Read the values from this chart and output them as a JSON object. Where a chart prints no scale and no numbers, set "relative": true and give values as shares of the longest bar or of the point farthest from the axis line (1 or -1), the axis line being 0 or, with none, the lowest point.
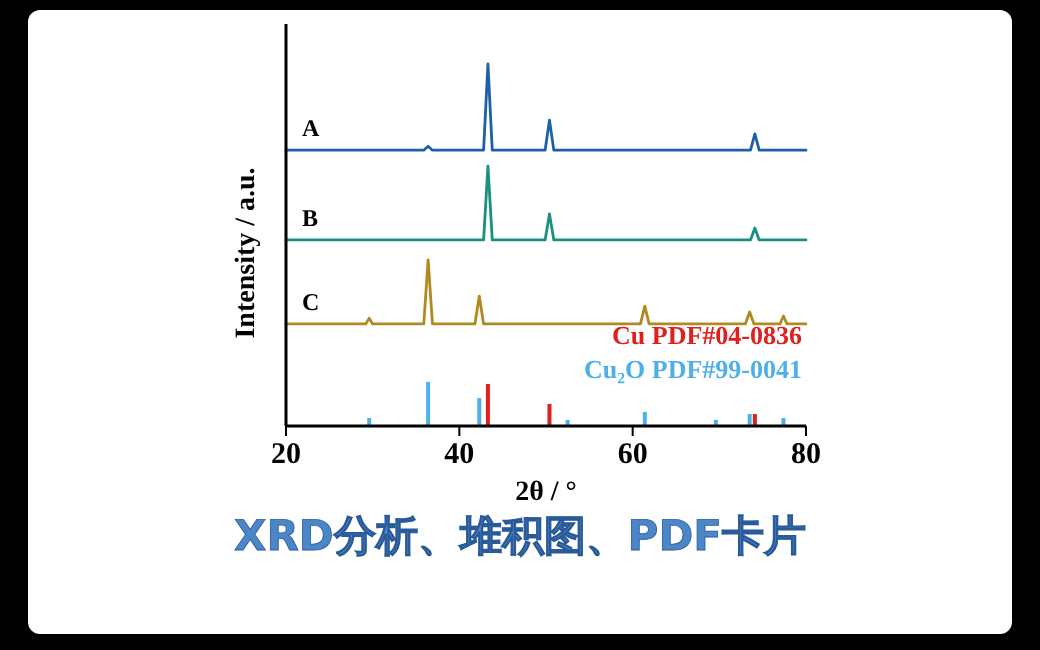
{
  "chart_data": {
    "type": "line",
    "xlabel": "2θ / °",
    "ylabel": "Intensity / a.u.",
    "relative": true,
    "xlim": [
      20,
      80
    ],
    "xticks": [
      20,
      40,
      60,
      80
    ],
    "annotations": [
      "XRD分析、堆积图、PDF卡片"
    ],
    "series": [
      {
        "name": "A",
        "color": "#1f5fa8",
        "x": [
          20,
          35.9,
          36.4,
          36.9,
          42.8,
          43.3,
          43.8,
          49.9,
          50.4,
          50.9,
          73.6,
          74.1,
          74.6,
          80
        ],
        "values": [
          0.762,
          0.762,
          0.773,
          0.762,
          0.762,
          1.0,
          0.762,
          0.762,
          0.845,
          0.762,
          0.762,
          0.807,
          0.762,
          0.762
        ]
      },
      {
        "name": "B",
        "color": "#1a9080",
        "x": [
          20,
          42.8,
          43.3,
          43.8,
          49.9,
          50.4,
          50.9,
          73.6,
          74.1,
          74.6,
          80
        ],
        "values": [
          0.514,
          0.514,
          0.718,
          0.514,
          0.514,
          0.586,
          0.514,
          0.514,
          0.547,
          0.514,
          0.514
        ]
      },
      {
        "name": "C",
        "color": "#b08a20",
        "x": [
          20,
          29.2,
          29.6,
          30.0,
          35.9,
          36.4,
          36.9,
          41.8,
          42.3,
          42.8,
          60.9,
          61.4,
          61.9,
          73.0,
          73.5,
          74.0,
          77.0,
          77.4,
          77.8,
          80
        ],
        "values": [
          0.282,
          0.282,
          0.298,
          0.282,
          0.282,
          0.459,
          0.282,
          0.282,
          0.359,
          0.282,
          0.282,
          0.331,
          0.282,
          0.282,
          0.315,
          0.282,
          0.282,
          0.304,
          0.282,
          0.282
        ]
      },
      {
        "name": "Cu PDF#04-0836",
        "type": "bar",
        "color": "#e0201c",
        "x": [
          43.3,
          50.4,
          74.1
        ],
        "values": [
          0.116,
          0.061,
          0.033
        ]
      },
      {
        "name": "Cu₂O PDF#99-0041",
        "type": "bar",
        "color": "#4fb0e8",
        "x": [
          29.6,
          36.4,
          42.3,
          52.5,
          61.4,
          69.6,
          73.5,
          77.4
        ],
        "values": [
          0.022,
          0.122,
          0.077,
          0.017,
          0.039,
          0.017,
          0.033,
          0.022
        ]
      }
    ]
  }
}
